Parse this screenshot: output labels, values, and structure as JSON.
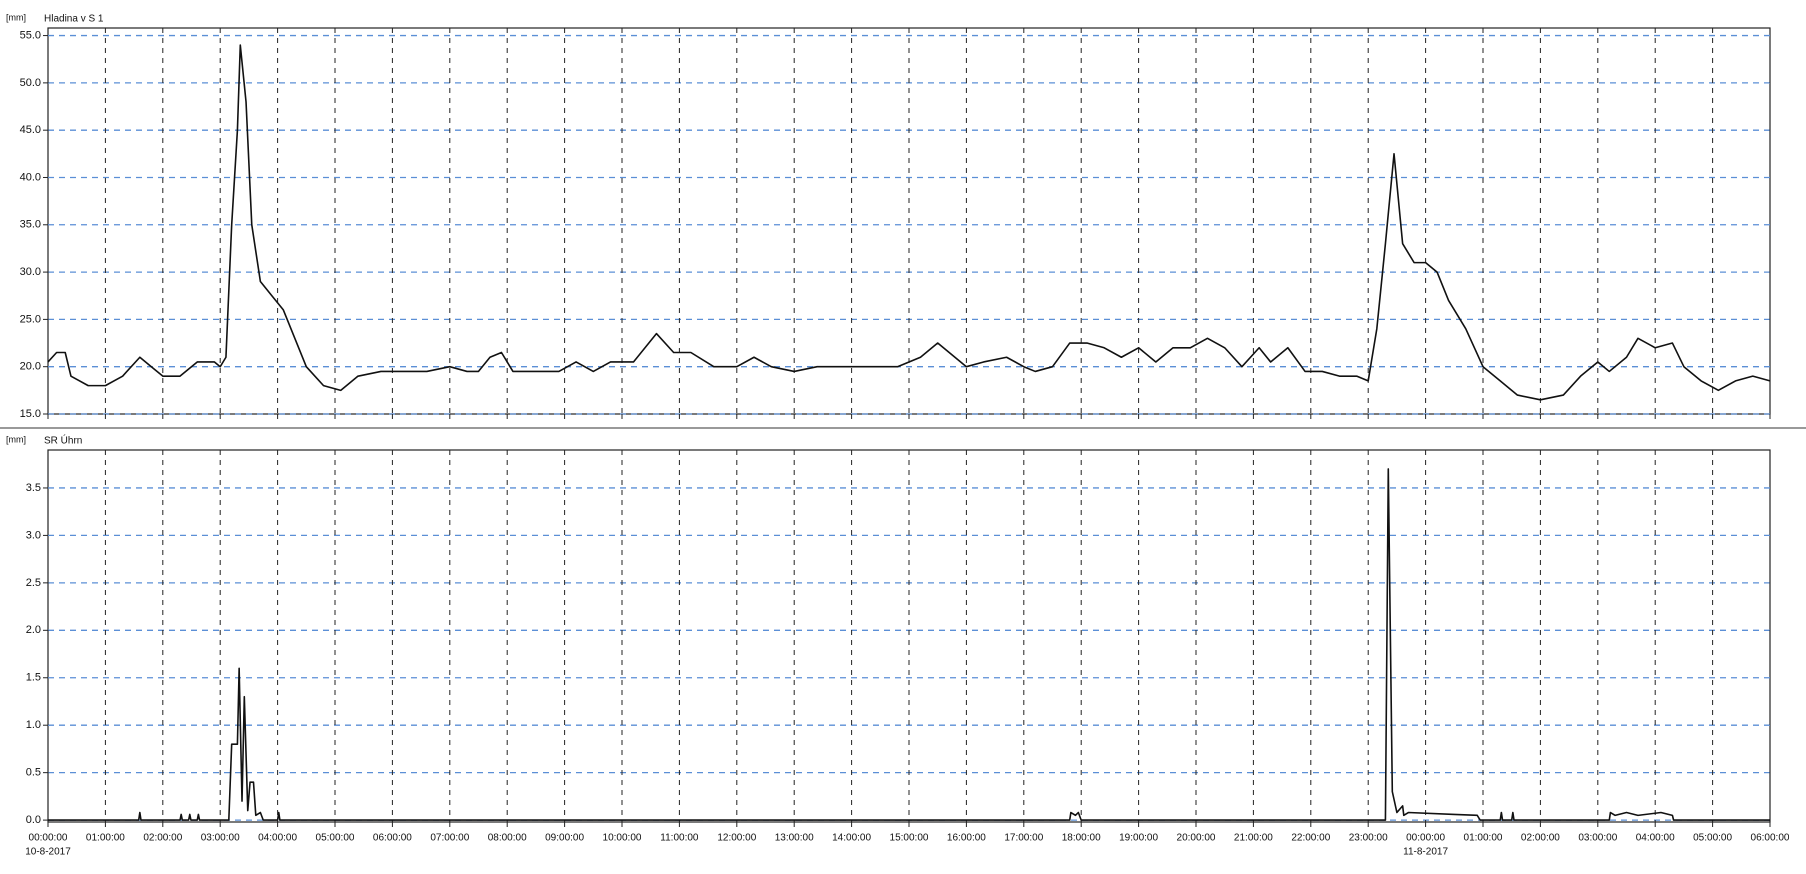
{
  "chart_data": [
    {
      "type": "line",
      "title": "Hladina v S 1",
      "title_color": "#111111",
      "y_unit": "[mm]",
      "xlim": [
        0,
        30
      ],
      "ylim": [
        15,
        55.8
      ],
      "xticks": [
        0,
        1,
        2,
        3,
        4,
        5,
        6,
        7,
        8,
        9,
        10,
        11,
        12,
        13,
        14,
        15,
        16,
        17,
        18,
        19,
        20,
        21,
        22,
        23,
        24,
        25,
        26,
        27,
        28,
        29,
        30
      ],
      "x_tick_labels": false,
      "yticks": [
        {
          "value": 15,
          "label": "15.0"
        },
        {
          "value": 20,
          "label": "20.0"
        },
        {
          "value": 25,
          "label": "25.0"
        },
        {
          "value": 30,
          "label": "30.0"
        },
        {
          "value": 35,
          "label": "35.0"
        },
        {
          "value": 40,
          "label": "40.0"
        },
        {
          "value": 45,
          "label": "45.0"
        },
        {
          "value": 50,
          "label": "50.0"
        },
        {
          "value": 55,
          "label": "55.0"
        }
      ],
      "grid": true,
      "x": [
        0,
        0.15,
        0.3,
        0.4,
        0.7,
        1,
        1.3,
        1.6,
        1.8,
        2,
        2.3,
        2.6,
        2.9,
        3.0,
        3.1,
        3.2,
        3.3,
        3.35,
        3.45,
        3.55,
        3.7,
        3.9,
        4.1,
        4.3,
        4.5,
        4.8,
        5.1,
        5.4,
        5.8,
        6.2,
        6.6,
        7,
        7.3,
        7.5,
        7.7,
        7.9,
        8.1,
        8.5,
        8.9,
        9.2,
        9.5,
        9.8,
        10.2,
        10.6,
        10.9,
        11.2,
        11.6,
        12,
        12.3,
        12.6,
        13,
        13.4,
        13.8,
        14.3,
        14.8,
        15.2,
        15.5,
        15.8,
        16,
        16.3,
        16.7,
        17,
        17.2,
        17.5,
        17.8,
        18.1,
        18.4,
        18.7,
        19,
        19.3,
        19.6,
        19.9,
        20.2,
        20.5,
        20.8,
        21.1,
        21.3,
        21.6,
        21.9,
        22.2,
        22.5,
        22.8,
        23,
        23.15,
        23.3,
        23.45,
        23.6,
        23.8,
        24,
        24.2,
        24.4,
        24.7,
        25,
        25.3,
        25.6,
        26,
        26.4,
        26.7,
        27,
        27.2,
        27.5,
        27.7,
        28,
        28.3,
        28.5,
        28.8,
        29.1,
        29.4,
        29.7,
        30
      ],
      "series": [
        {
          "color": "#111111",
          "values": [
            20.5,
            21.5,
            21.5,
            19,
            18,
            18,
            19,
            21,
            20,
            19,
            19,
            20.5,
            20.5,
            20,
            21,
            35,
            45,
            54,
            48,
            35,
            29,
            27.5,
            26,
            23,
            20,
            18,
            17.5,
            19,
            19.5,
            19.5,
            19.5,
            20,
            19.5,
            19.5,
            21,
            21.5,
            19.5,
            19.5,
            19.5,
            20.5,
            19.5,
            20.5,
            20.5,
            23.5,
            21.5,
            21.5,
            20,
            20,
            21,
            20,
            19.5,
            20,
            20,
            20,
            20,
            21,
            22.5,
            21,
            20,
            20.5,
            21,
            20,
            19.5,
            20,
            22.5,
            22.5,
            22,
            21,
            22,
            20.5,
            22,
            22,
            23,
            22,
            20,
            22,
            20.5,
            22,
            19.5,
            19.5,
            19,
            19,
            18.5,
            24,
            33,
            42.5,
            33,
            31,
            31,
            30,
            27,
            24,
            20,
            18.5,
            17,
            16.5,
            17,
            19,
            20.5,
            19.5,
            21,
            23,
            22,
            22.5,
            20,
            18.5,
            17.5,
            18.5,
            19,
            18.5
          ]
        }
      ]
    },
    {
      "type": "line",
      "title": "SR Úhrn",
      "title_color": "#d9342b",
      "y_unit": "[mm]",
      "xlim": [
        0,
        30
      ],
      "ylim": [
        -0.02,
        3.9
      ],
      "xticks": [
        {
          "value": 0,
          "label": "00:00:00"
        },
        {
          "value": 1,
          "label": "01:00:00"
        },
        {
          "value": 2,
          "label": "02:00:00"
        },
        {
          "value": 3,
          "label": "03:00:00"
        },
        {
          "value": 4,
          "label": "04:00:00"
        },
        {
          "value": 5,
          "label": "05:00:00"
        },
        {
          "value": 6,
          "label": "06:00:00"
        },
        {
          "value": 7,
          "label": "07:00:00"
        },
        {
          "value": 8,
          "label": "08:00:00"
        },
        {
          "value": 9,
          "label": "09:00:00"
        },
        {
          "value": 10,
          "label": "10:00:00"
        },
        {
          "value": 11,
          "label": "11:00:00"
        },
        {
          "value": 12,
          "label": "12:00:00"
        },
        {
          "value": 13,
          "label": "13:00:00"
        },
        {
          "value": 14,
          "label": "14:00:00"
        },
        {
          "value": 15,
          "label": "15:00:00"
        },
        {
          "value": 16,
          "label": "16:00:00"
        },
        {
          "value": 17,
          "label": "17:00:00"
        },
        {
          "value": 18,
          "label": "18:00:00"
        },
        {
          "value": 19,
          "label": "19:00:00"
        },
        {
          "value": 20,
          "label": "20:00:00"
        },
        {
          "value": 21,
          "label": "21:00:00"
        },
        {
          "value": 22,
          "label": "22:00:00"
        },
        {
          "value": 23,
          "label": "23:00:00"
        },
        {
          "value": 24,
          "label": "00:00:00"
        },
        {
          "value": 25,
          "label": "01:00:00"
        },
        {
          "value": 26,
          "label": "02:00:00"
        },
        {
          "value": 27,
          "label": "03:00:00"
        },
        {
          "value": 28,
          "label": "04:00:00"
        },
        {
          "value": 29,
          "label": "05:00:00"
        },
        {
          "value": 30,
          "label": "06:00:00"
        }
      ],
      "x_tick_labels": true,
      "x_date_labels": [
        {
          "value": 0,
          "label": "10-8-2017"
        },
        {
          "value": 24,
          "label": "11-8-2017"
        }
      ],
      "yticks": [
        {
          "value": 0,
          "label": "0.0"
        },
        0.5,
        {
          "value": 1,
          "label": "1.0"
        },
        1.5,
        {
          "value": 2,
          "label": "2.0"
        },
        2.5,
        {
          "value": 3,
          "label": "3.0"
        },
        3.5
      ],
      "grid": true,
      "x": [
        0,
        1.58,
        1.6,
        1.62,
        2.3,
        2.32,
        2.34,
        2.45,
        2.47,
        2.49,
        2.6,
        2.62,
        2.64,
        3.15,
        3.2,
        3.3,
        3.33,
        3.38,
        3.42,
        3.48,
        3.52,
        3.58,
        3.62,
        3.7,
        3.75,
        4.0,
        4.02,
        4.04,
        17.8,
        17.82,
        17.9,
        17.95,
        18.0,
        23.3,
        23.35,
        23.42,
        23.5,
        23.6,
        23.62,
        23.7,
        24.5,
        24.9,
        24.95,
        25.3,
        25.32,
        25.34,
        25.5,
        25.52,
        25.54,
        27.2,
        27.22,
        27.3,
        27.5,
        27.7,
        28.1,
        28.3,
        28.32,
        30
      ],
      "series": [
        {
          "color": "#111111",
          "values": [
            0,
            0,
            0.08,
            0,
            0,
            0.06,
            0,
            0,
            0.06,
            0,
            0,
            0.06,
            0,
            0,
            0.8,
            0.8,
            1.6,
            0.2,
            1.3,
            0.1,
            0.4,
            0.4,
            0.05,
            0.08,
            0,
            0,
            0.08,
            0,
            0,
            0.08,
            0.05,
            0.08,
            0,
            0,
            3.7,
            0.3,
            0.08,
            0.15,
            0.05,
            0.08,
            0.06,
            0.05,
            0,
            0,
            0.08,
            0,
            0,
            0.08,
            0,
            0,
            0.08,
            0.05,
            0.08,
            0.05,
            0.08,
            0.05,
            0,
            0
          ]
        }
      ]
    }
  ]
}
